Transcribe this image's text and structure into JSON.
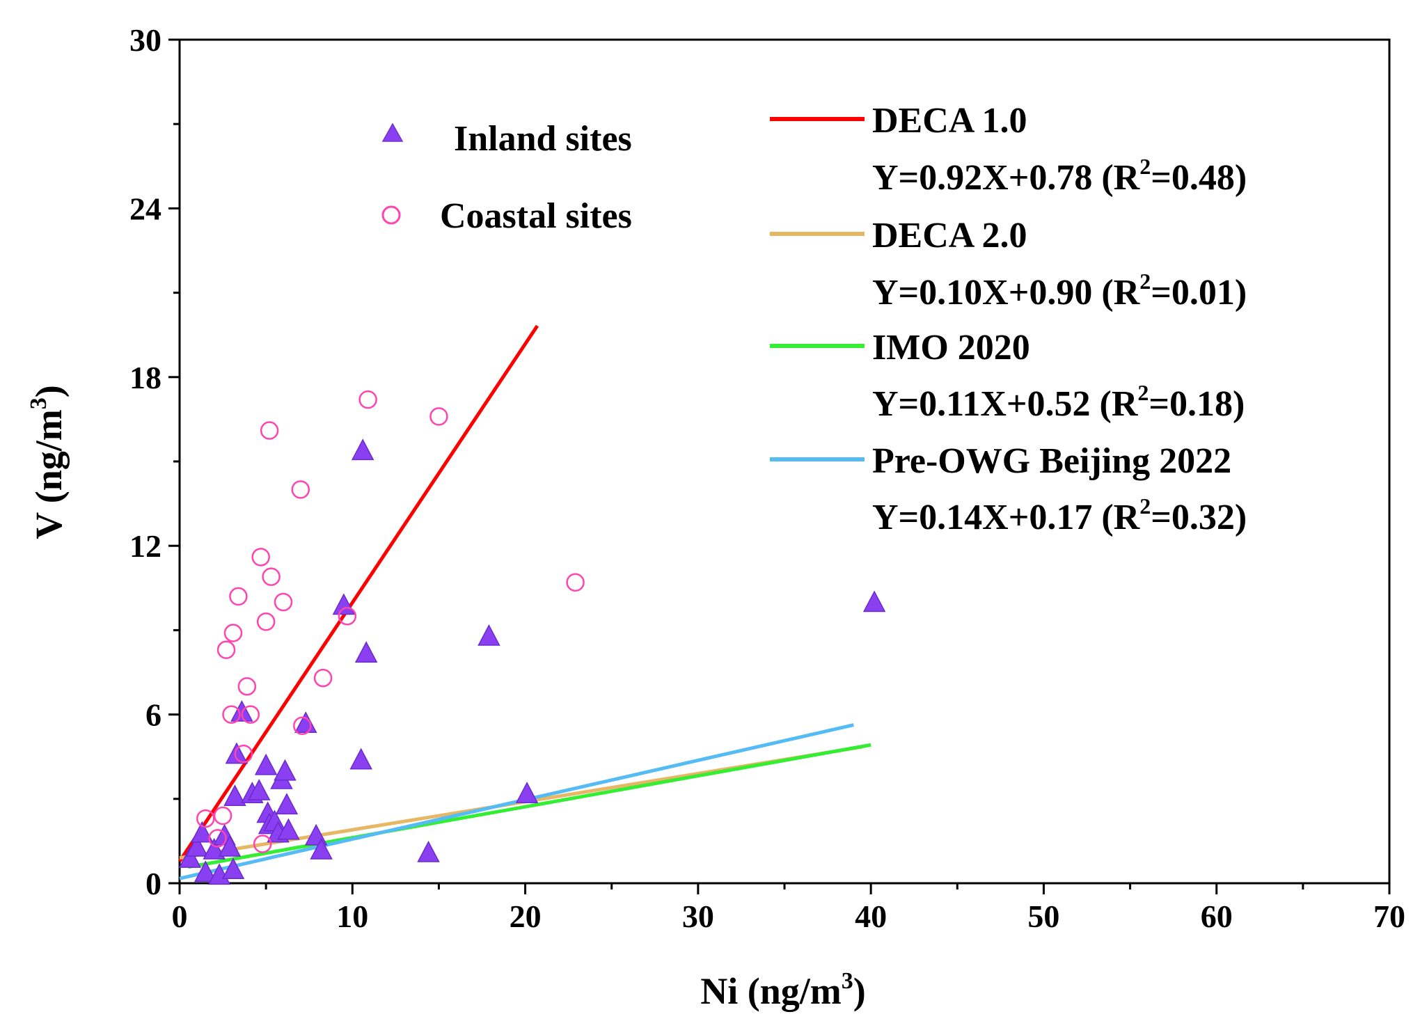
{
  "chart_data": {
    "type": "scatter",
    "xlabel": "Ni (ng/m",
    "xlabel_sup": "3",
    "xlabel_end": ")",
    "ylabel": "V (ng/m",
    "ylabel_sup": "3",
    "ylabel_end": ")",
    "xlim": [
      0,
      70
    ],
    "ylim": [
      0,
      30
    ],
    "xticks": [
      0,
      10,
      20,
      30,
      40,
      50,
      60,
      70
    ],
    "yticks": [
      0,
      6,
      12,
      18,
      24,
      30
    ],
    "tick_labels_x": [
      "0",
      "10",
      "20",
      "30",
      "40",
      "50",
      "60",
      "70"
    ],
    "tick_labels_y": [
      "0",
      "6",
      "12",
      "18",
      "24",
      "30"
    ],
    "scatter_series": [
      {
        "name": "Inland sites",
        "marker": "filled-triangle",
        "color": "#8a3ff0",
        "points": [
          [
            0.6,
            0.9
          ],
          [
            1.0,
            1.3
          ],
          [
            1.3,
            1.8
          ],
          [
            1.5,
            0.4
          ],
          [
            2.0,
            1.2
          ],
          [
            2.3,
            0.3
          ],
          [
            2.6,
            1.7
          ],
          [
            2.9,
            1.3
          ],
          [
            3.1,
            0.5
          ],
          [
            3.3,
            4.6
          ],
          [
            3.2,
            3.1
          ],
          [
            3.6,
            6.1
          ],
          [
            4.2,
            3.2
          ],
          [
            4.6,
            3.3
          ],
          [
            5.0,
            4.2
          ],
          [
            5.1,
            2.5
          ],
          [
            5.2,
            2.1
          ],
          [
            5.5,
            2.2
          ],
          [
            5.7,
            1.8
          ],
          [
            5.9,
            3.7
          ],
          [
            6.1,
            4.0
          ],
          [
            6.2,
            2.8
          ],
          [
            6.3,
            1.9
          ],
          [
            7.3,
            5.7
          ],
          [
            7.9,
            1.7
          ],
          [
            8.2,
            1.2
          ],
          [
            9.5,
            9.9
          ],
          [
            10.5,
            4.4
          ],
          [
            10.6,
            15.4
          ],
          [
            10.8,
            8.2
          ],
          [
            14.4,
            1.1
          ],
          [
            17.9,
            8.8
          ],
          [
            20.1,
            3.2
          ],
          [
            40.2,
            10.0
          ]
        ]
      },
      {
        "name": "Coastal sites",
        "marker": "open-circle",
        "color": "#ff44b0",
        "points": [
          [
            1.5,
            2.3
          ],
          [
            2.5,
            2.4
          ],
          [
            2.7,
            8.3
          ],
          [
            3.0,
            6.0
          ],
          [
            3.1,
            8.9
          ],
          [
            3.4,
            10.2
          ],
          [
            3.7,
            4.6
          ],
          [
            3.9,
            7.0
          ],
          [
            4.1,
            6.0
          ],
          [
            4.7,
            11.6
          ],
          [
            5.0,
            9.3
          ],
          [
            5.2,
            16.1
          ],
          [
            5.3,
            10.9
          ],
          [
            6.0,
            10.0
          ],
          [
            7.0,
            14.0
          ],
          [
            7.1,
            5.6
          ],
          [
            8.3,
            7.3
          ],
          [
            9.7,
            9.5
          ],
          [
            10.9,
            17.2
          ],
          [
            15.0,
            16.6
          ],
          [
            22.9,
            10.7
          ],
          [
            2.2,
            1.6
          ],
          [
            4.8,
            1.4
          ]
        ]
      }
    ],
    "fit_lines": [
      {
        "name": "DECA 1.0",
        "equation": "Y=0.92X+0.78 (R",
        "r2_sup": "2",
        "r2_end": "=0.48)",
        "slope": 0.92,
        "intercept": 0.78,
        "x_range": [
          0,
          20.7
        ],
        "color": "#ff0000"
      },
      {
        "name": "DECA 2.0",
        "equation": "Y=0.10X+0.90 (R",
        "r2_sup": "2",
        "r2_end": "=0.01)",
        "slope": 0.1,
        "intercept": 0.9,
        "x_range": [
          0,
          39.5
        ],
        "color": "#e6b866"
      },
      {
        "name": "IMO 2020",
        "equation": "Y=0.11X+0.52 (R",
        "r2_sup": "2",
        "r2_end": "=0.18)",
        "slope": 0.11,
        "intercept": 0.52,
        "x_range": [
          0.5,
          40.0
        ],
        "color": "#33ee33"
      },
      {
        "name": "Pre-OWG Beijing 2022",
        "equation": "Y=0.14X+0.17 (R",
        "r2_sup": "2",
        "r2_end": "=0.32)",
        "slope": 0.14,
        "intercept": 0.17,
        "x_range": [
          0,
          39.0
        ],
        "color": "#55bbf5"
      }
    ]
  }
}
